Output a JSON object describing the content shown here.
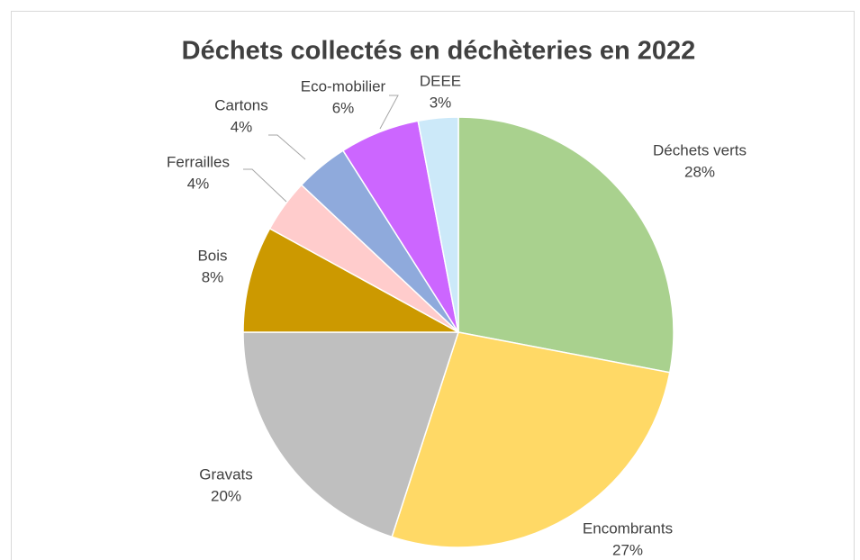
{
  "chart_data": {
    "type": "pie",
    "title": "Déchets collectés en déchèteries en 2022",
    "categories": [
      "Déchets verts",
      "Encombrants",
      "Gravats",
      "Bois",
      "Ferrailles",
      "Cartons",
      "Eco-mobilier",
      "DEEE"
    ],
    "values": [
      28,
      27,
      20,
      8,
      4,
      4,
      6,
      3
    ],
    "value_labels": [
      "28%",
      "27%",
      "20%",
      "8%",
      "4%",
      "4%",
      "6%",
      "3%"
    ],
    "colors": [
      "#a9d18e",
      "#ffd966",
      "#bfbfbf",
      "#cc9900",
      "#ffcccc",
      "#8faadc",
      "#cc66ff",
      "#cce9f9"
    ]
  }
}
